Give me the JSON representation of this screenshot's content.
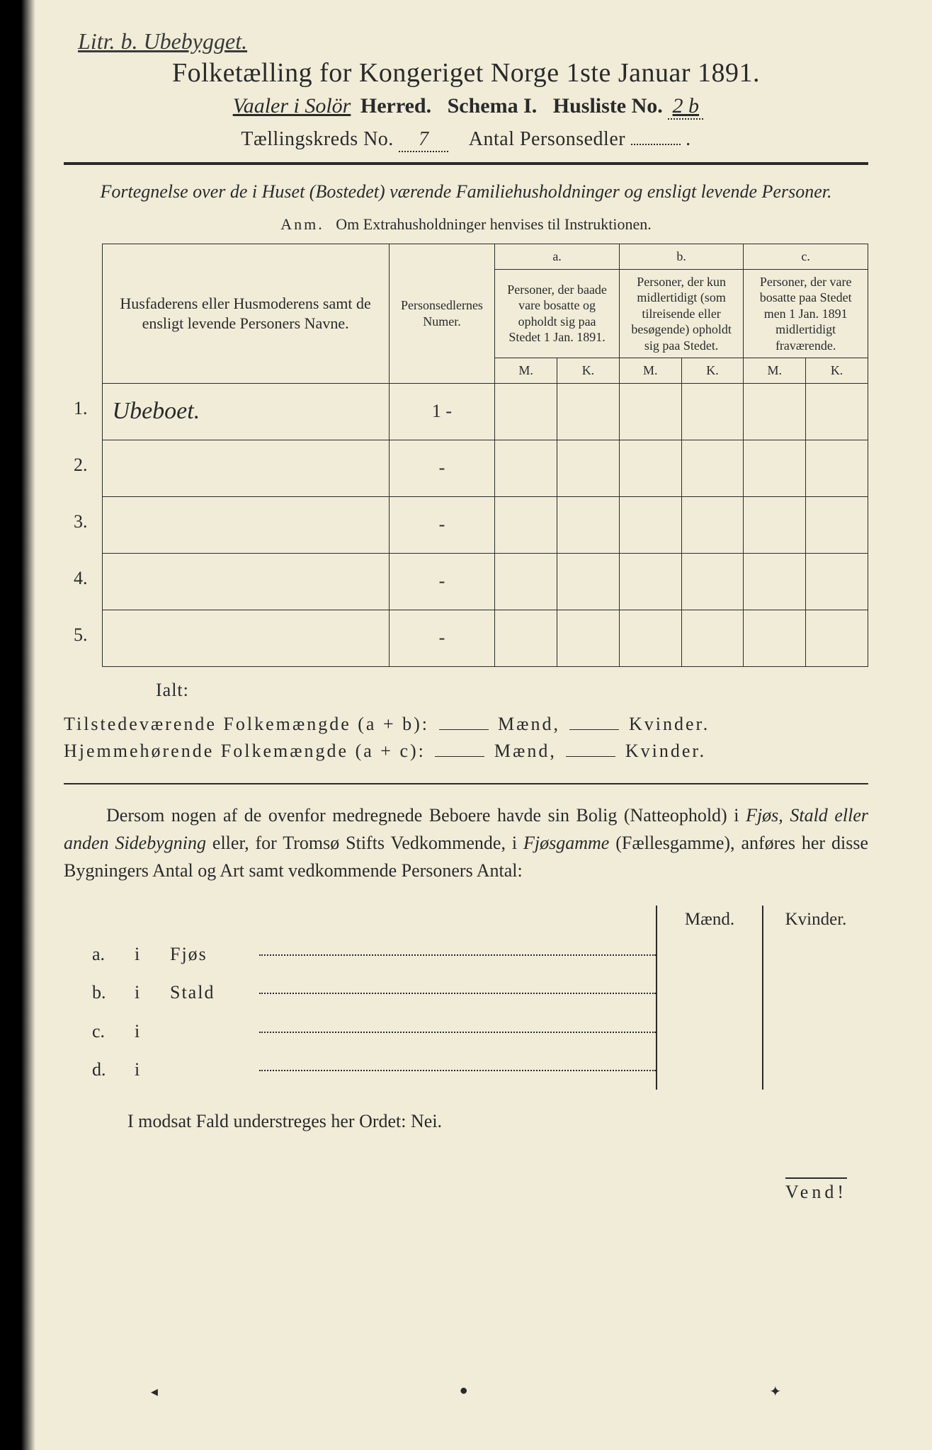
{
  "handwritten_top": "Litr. b.   Ubebygget.",
  "title": "Folketælling for Kongeriget Norge 1ste Januar 1891.",
  "herred_line": {
    "handwritten_place": "Vaaler i Solör",
    "herred": "Herred.",
    "schema": "Schema I.",
    "husliste_label": "Husliste No.",
    "husliste_hand": "2 b"
  },
  "kreds_line": {
    "label_kreds": "Tællingskreds No.",
    "kreds_hand": "7",
    "label_antal": "Antal Personsedler",
    "antal_hand": ""
  },
  "subtitle": "Fortegnelse over de i Huset (Bostedet) værende Familiehusholdninger og ensligt levende Personer.",
  "anm": {
    "label": "Anm.",
    "text": "Om Extrahusholdninger henvises til Instruktionen."
  },
  "table": {
    "col_names": "Husfaderens eller Husmoderens samt de ensligt levende Personers Navne.",
    "col_num": "Personsedlernes Numer.",
    "col_a_letter": "a.",
    "col_a": "Personer, der baade vare bosatte og opholdt sig paa Stedet 1 Jan. 1891.",
    "col_b_letter": "b.",
    "col_b": "Personer, der kun midlertidigt (som tilreisende eller besøgende) opholdt sig paa Stedet.",
    "col_c_letter": "c.",
    "col_c": "Personer, der vare bosatte paa Stedet men 1 Jan. 1891 midlertidigt fraværende.",
    "M": "M.",
    "K": "K.",
    "rows": [
      {
        "n": "1.",
        "name": "Ubeboet.",
        "num": "1 -"
      },
      {
        "n": "2.",
        "name": "",
        "num": "-"
      },
      {
        "n": "3.",
        "name": "",
        "num": "-"
      },
      {
        "n": "4.",
        "name": "",
        "num": "-"
      },
      {
        "n": "5.",
        "name": "",
        "num": "-"
      }
    ]
  },
  "ialt": "Ialt:",
  "sum1": {
    "label": "Tilstedeværende Folkemængde (a + b):",
    "m": "Mænd,",
    "k": "Kvinder."
  },
  "sum2": {
    "label": "Hjemmehørende Folkemængde (a + c):",
    "m": "Mænd,",
    "k": "Kvinder."
  },
  "para": "Dersom nogen af de ovenfor medregnede Beboere havde sin Bolig (Natteophold) i Fjøs, Stald eller anden Sidebygning eller, for Tromsø Stifts Vedkommende, i Fjøsgamme (Fællesgamme), anføres her disse Bygningers Antal og Art samt vedkommende Personers Antal:",
  "bldg": {
    "header_m": "Mænd.",
    "header_k": "Kvinder.",
    "rows": [
      {
        "l": "a.",
        "i": "i",
        "name": "Fjøs"
      },
      {
        "l": "b.",
        "i": "i",
        "name": "Stald"
      },
      {
        "l": "c.",
        "i": "i",
        "name": ""
      },
      {
        "l": "d.",
        "i": "i",
        "name": ""
      }
    ]
  },
  "nei": "I modsat Fald understreges her Ordet: Nei.",
  "vend": "Vend!"
}
